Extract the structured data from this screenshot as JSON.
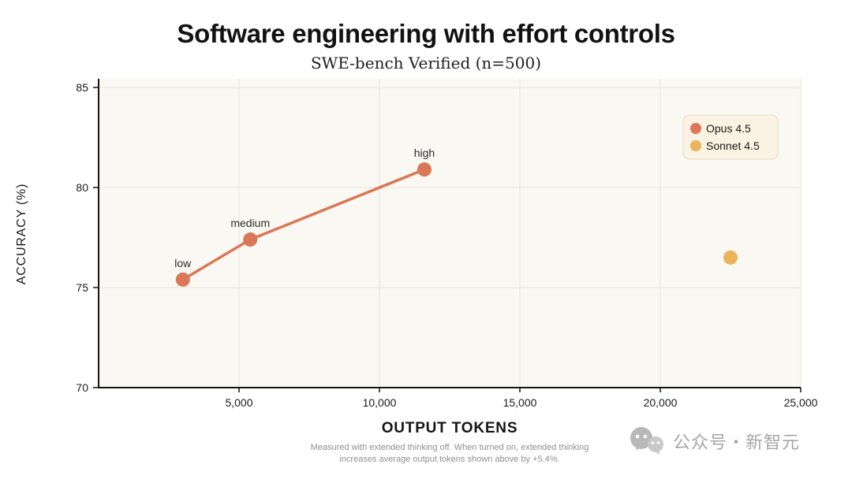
{
  "title": "Software engineering with effort controls",
  "subtitle": "SWE-bench Verified (n=500)",
  "colors": {
    "plot_bg": "#FAF8F2",
    "grid": "#E8E4D8",
    "axis": "#141414",
    "tick_text": "#1A1A1A",
    "point_label_text": "#2B2B2B",
    "legend_bg": "#FAF3E3",
    "legend_border": "#E5DCC4",
    "legend_text": "#1A1A1A",
    "muted_text": "#8F8F8F",
    "watermark": "#B5B5B5"
  },
  "chart_data": {
    "type": "scatter",
    "title": "Software engineering with effort controls",
    "subtitle": "SWE-bench Verified (n=500)",
    "xlabel": "OUTPUT TOKENS",
    "ylabel": "ACCURACY (%)",
    "xlim": [
      0,
      25000
    ],
    "ylim": [
      70,
      85
    ],
    "x_ticks": [
      5000,
      10000,
      15000,
      20000,
      25000
    ],
    "x_tick_labels": [
      "5,000",
      "10,000",
      "15,000",
      "20,000",
      "25,000"
    ],
    "y_ticks": [
      70,
      75,
      80,
      85
    ],
    "y_tick_labels": [
      "70",
      "75",
      "80",
      "85"
    ],
    "grid": true,
    "legend_position": "top-right",
    "series": [
      {
        "name": "Opus 4.5",
        "color": "#D97757",
        "line": true,
        "points": [
          {
            "x": 3000,
            "y": 75.4,
            "label": "low"
          },
          {
            "x": 5400,
            "y": 77.4,
            "label": "medium"
          },
          {
            "x": 11600,
            "y": 80.9,
            "label": "high"
          }
        ]
      },
      {
        "name": "Sonnet 4.5",
        "color": "#E9B45B",
        "line": false,
        "points": [
          {
            "x": 22500,
            "y": 76.5,
            "label": ""
          }
        ]
      }
    ]
  },
  "footnote": {
    "line1": "Measured with extended thinking off. When turned on, extended thinking",
    "line2": "increases average output tokens shown above by +5.4%."
  },
  "watermark": {
    "text": "公众号・新智元"
  }
}
